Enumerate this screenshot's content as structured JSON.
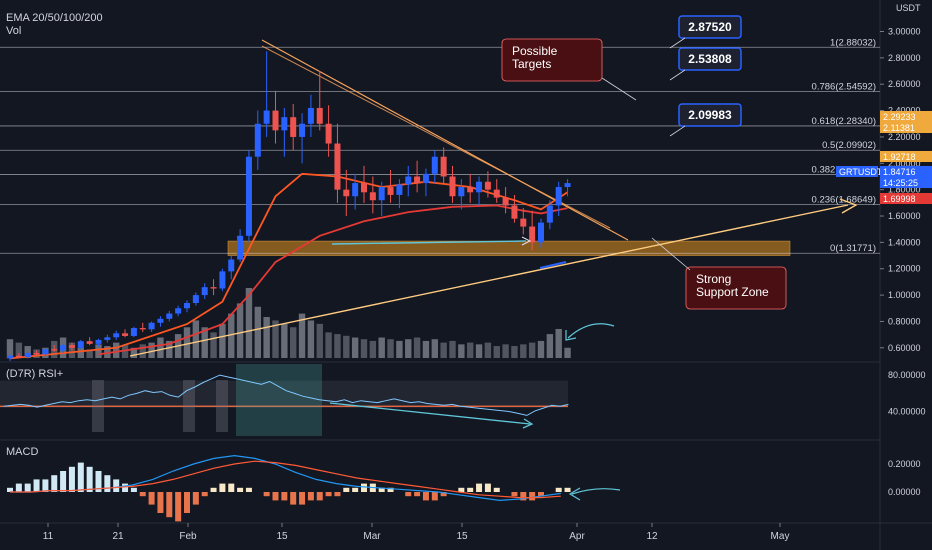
{
  "header": {
    "indicator": "EMA 20/50/100/200",
    "vol_label": "Vol",
    "quote": "USDT"
  },
  "colors": {
    "background": "#131722",
    "up": "#2962ff",
    "down": "#ef5350",
    "ema20": "#ff5722",
    "ema50": "#e53935",
    "trend_down": "#f7a35c",
    "trend_up": "#ffcc80",
    "fib": "#e0e3eb",
    "support_zone": "#b7791f",
    "callout": "#4a0f12",
    "callout_border": "#ff6b6b",
    "target_box": "#1e2230",
    "target_border": "#2962ff",
    "rsi": "#7fc7ff",
    "macd": "#2196f3",
    "signal": "#ff5a36",
    "hist_pos": "#d1e9f5",
    "hist_neg": "#e8744b",
    "hist_pale": "#f7e9c8",
    "annot_arrow": "#5fc6d8"
  },
  "price_axis": {
    "ticks": [
      "3.00000",
      "2.80000",
      "2.60000",
      "2.40000",
      "2.20000",
      "2.00000",
      "1.80000",
      "1.60000",
      "1.40000",
      "1.20000",
      "1.00000",
      "0.80000",
      "0.60000"
    ],
    "tags": [
      {
        "label": "2.29233",
        "value": 2.29233,
        "color": "#f0a93c"
      },
      {
        "label": "2.11381",
        "value": 2.11381,
        "color": "#f0a93c"
      },
      {
        "label": "1.92718",
        "value": 1.92718,
        "color": "#f0a93c"
      },
      {
        "label": "GRTUSDT",
        "value": 1.84716,
        "color": "#2962ff"
      },
      {
        "label": "1.84716",
        "value": 1.84716,
        "color": "#2962ff"
      },
      {
        "label": "14:25:25",
        "value": 1.78,
        "color": "#2962ff"
      },
      {
        "label": "1.69998",
        "value": 1.69998,
        "color": "#e53935"
      }
    ]
  },
  "fib_levels": [
    {
      "label": "1(2.88032)",
      "value": 2.88032
    },
    {
      "label": "0.786(2.54592)",
      "value": 2.54592
    },
    {
      "label": "0.618(2.28340)",
      "value": 2.2834
    },
    {
      "label": "0.5(2.09902)",
      "value": 2.09902
    },
    {
      "label": "0.382(1.91463)",
      "value": 1.91463
    },
    {
      "label": "0.236(1.68649)",
      "value": 1.68649
    },
    {
      "label": "0(1.31771)",
      "value": 1.31771
    }
  ],
  "targets": [
    "2.87520",
    "2.53808",
    "2.09983"
  ],
  "callouts": {
    "targets": "Possible\nTargets",
    "support": "Strong\nSupport Zone"
  },
  "time_axis": [
    "11",
    "21",
    "Feb",
    "15",
    "Mar",
    "15",
    "Apr",
    "12",
    "May"
  ],
  "rsi": {
    "label": "(D7R) RSI+",
    "ticks": [
      "80.00000",
      "40.00000"
    ],
    "values": [
      46,
      47,
      48,
      47,
      45,
      47,
      49,
      51,
      50,
      52,
      53,
      52,
      54,
      56,
      54,
      58,
      60,
      63,
      61,
      62,
      58,
      56,
      63,
      67,
      72,
      76,
      80,
      78,
      76,
      74,
      72,
      70,
      73,
      68,
      63,
      60,
      57,
      55,
      53,
      52,
      51,
      53,
      50,
      52,
      51,
      50,
      52,
      54,
      52,
      50,
      51,
      49,
      48,
      47,
      48,
      46,
      45,
      44,
      43,
      42,
      41,
      40,
      38,
      36,
      41,
      44,
      47,
      46,
      48
    ]
  },
  "macd": {
    "label": "MACD",
    "ticks": [
      "0.20000",
      "0.00000"
    ]
  },
  "chart_data": {
    "type": "candlestick",
    "symbol": "GRTUSDT",
    "ylim": [
      0.5,
      3.0
    ],
    "candles": [
      [
        0.52,
        0.55,
        0.5,
        0.54
      ],
      [
        0.54,
        0.56,
        0.52,
        0.53
      ],
      [
        0.53,
        0.57,
        0.52,
        0.56
      ],
      [
        0.56,
        0.58,
        0.54,
        0.55
      ],
      [
        0.55,
        0.6,
        0.54,
        0.59
      ],
      [
        0.59,
        0.62,
        0.57,
        0.58
      ],
      [
        0.58,
        0.63,
        0.56,
        0.62
      ],
      [
        0.62,
        0.64,
        0.58,
        0.6
      ],
      [
        0.6,
        0.66,
        0.59,
        0.65
      ],
      [
        0.65,
        0.68,
        0.62,
        0.63
      ],
      [
        0.63,
        0.67,
        0.61,
        0.66
      ],
      [
        0.66,
        0.7,
        0.64,
        0.68
      ],
      [
        0.68,
        0.73,
        0.66,
        0.71
      ],
      [
        0.71,
        0.74,
        0.68,
        0.69
      ],
      [
        0.69,
        0.76,
        0.68,
        0.75
      ],
      [
        0.75,
        0.79,
        0.72,
        0.74
      ],
      [
        0.74,
        0.8,
        0.72,
        0.79
      ],
      [
        0.79,
        0.84,
        0.76,
        0.82
      ],
      [
        0.82,
        0.88,
        0.8,
        0.86
      ],
      [
        0.86,
        0.92,
        0.84,
        0.9
      ],
      [
        0.9,
        0.96,
        0.87,
        0.94
      ],
      [
        0.94,
        1.02,
        0.92,
        1.0
      ],
      [
        1.0,
        1.09,
        0.97,
        1.06
      ],
      [
        1.06,
        1.12,
        1.0,
        1.05
      ],
      [
        1.05,
        1.2,
        1.03,
        1.18
      ],
      [
        1.18,
        1.3,
        1.12,
        1.27
      ],
      [
        1.27,
        1.5,
        1.25,
        1.45
      ],
      [
        1.45,
        2.1,
        1.4,
        2.05
      ],
      [
        2.05,
        2.4,
        1.95,
        2.3
      ],
      [
        2.3,
        2.85,
        2.2,
        2.4
      ],
      [
        2.4,
        2.55,
        2.15,
        2.25
      ],
      [
        2.25,
        2.42,
        2.05,
        2.35
      ],
      [
        2.35,
        2.45,
        2.1,
        2.2
      ],
      [
        2.2,
        2.38,
        2.0,
        2.3
      ],
      [
        2.3,
        2.52,
        2.2,
        2.42
      ],
      [
        2.42,
        2.7,
        2.25,
        2.3
      ],
      [
        2.3,
        2.44,
        2.05,
        2.15
      ],
      [
        2.15,
        2.3,
        1.7,
        1.8
      ],
      [
        1.8,
        1.95,
        1.6,
        1.75
      ],
      [
        1.75,
        1.92,
        1.65,
        1.85
      ],
      [
        1.85,
        1.98,
        1.7,
        1.78
      ],
      [
        1.78,
        1.9,
        1.62,
        1.72
      ],
      [
        1.72,
        1.86,
        1.6,
        1.82
      ],
      [
        1.82,
        1.95,
        1.7,
        1.76
      ],
      [
        1.76,
        1.88,
        1.66,
        1.84
      ],
      [
        1.84,
        1.98,
        1.75,
        1.9
      ],
      [
        1.9,
        2.02,
        1.78,
        1.85
      ],
      [
        1.85,
        1.96,
        1.75,
        1.92
      ],
      [
        1.92,
        2.1,
        1.85,
        2.05
      ],
      [
        2.05,
        2.12,
        1.85,
        1.9
      ],
      [
        1.9,
        1.98,
        1.7,
        1.75
      ],
      [
        1.75,
        1.88,
        1.65,
        1.82
      ],
      [
        1.82,
        1.92,
        1.7,
        1.78
      ],
      [
        1.78,
        1.9,
        1.68,
        1.86
      ],
      [
        1.86,
        1.94,
        1.74,
        1.8
      ],
      [
        1.8,
        1.88,
        1.7,
        1.74
      ],
      [
        1.74,
        1.82,
        1.62,
        1.68
      ],
      [
        1.68,
        1.76,
        1.55,
        1.58
      ],
      [
        1.58,
        1.66,
        1.46,
        1.52
      ],
      [
        1.52,
        1.64,
        1.34,
        1.4
      ],
      [
        1.4,
        1.58,
        1.36,
        1.55
      ],
      [
        1.55,
        1.72,
        1.5,
        1.68
      ],
      [
        1.68,
        1.86,
        1.6,
        1.82
      ],
      [
        1.82,
        1.88,
        1.75,
        1.85
      ]
    ],
    "ema20": [
      [
        0,
        0.52
      ],
      [
        12,
        0.6
      ],
      [
        20,
        0.78
      ],
      [
        24,
        0.95
      ],
      [
        27,
        1.35
      ],
      [
        30,
        1.75
      ],
      [
        33,
        1.92
      ],
      [
        37,
        1.9
      ],
      [
        42,
        1.82
      ],
      [
        47,
        1.86
      ],
      [
        52,
        1.82
      ],
      [
        57,
        1.72
      ],
      [
        60,
        1.65
      ],
      [
        63,
        1.78
      ]
    ],
    "ema50": [
      [
        10,
        0.55
      ],
      [
        18,
        0.63
      ],
      [
        24,
        0.78
      ],
      [
        27,
        1.0
      ],
      [
        30,
        1.25
      ],
      [
        35,
        1.45
      ],
      [
        40,
        1.56
      ],
      [
        45,
        1.63
      ],
      [
        50,
        1.67
      ],
      [
        55,
        1.68
      ],
      [
        58,
        1.64
      ],
      [
        60,
        1.62
      ],
      [
        63,
        1.66
      ]
    ],
    "volume": [
      22,
      18,
      14,
      10,
      12,
      20,
      24,
      18,
      12,
      10,
      16,
      14,
      18,
      15,
      12,
      16,
      18,
      24,
      20,
      28,
      36,
      44,
      36,
      30,
      40,
      52,
      64,
      82,
      60,
      48,
      44,
      40,
      36,
      52,
      44,
      40,
      30,
      28,
      26,
      24,
      22,
      20,
      24,
      22,
      20,
      22,
      24,
      20,
      22,
      18,
      20,
      16,
      18,
      16,
      18,
      14,
      16,
      14,
      16,
      18,
      20,
      28,
      34,
      12
    ],
    "macd_line": [
      0,
      0.0,
      0.01,
      0.01,
      0.02,
      0.03,
      0.05,
      0.09,
      0.15,
      0.2,
      0.24,
      0.26,
      0.24,
      0.2,
      0.14,
      0.09,
      0.06,
      0.04,
      0.03,
      0.02,
      0.01,
      0.0,
      -0.02,
      -0.04,
      -0.06,
      -0.05,
      -0.03,
      -0.01
    ],
    "signal_line": [
      0,
      0.0,
      0.01,
      0.01,
      0.02,
      0.03,
      0.04,
      0.06,
      0.09,
      0.13,
      0.17,
      0.2,
      0.22,
      0.21,
      0.19,
      0.16,
      0.13,
      0.1,
      0.08,
      0.06,
      0.04,
      0.02,
      0.0,
      -0.02,
      -0.03,
      -0.04,
      -0.04,
      -0.03
    ],
    "macd_hist": [
      0.01,
      0.02,
      0.02,
      0.03,
      0.03,
      0.04,
      0.05,
      0.06,
      0.07,
      0.06,
      0.05,
      0.04,
      0.03,
      0.02,
      0.01,
      -0.01,
      -0.03,
      -0.05,
      -0.06,
      -0.07,
      -0.05,
      -0.03,
      -0.01,
      0.01,
      0.02,
      0.02,
      0.01,
      0.01,
      0.0,
      -0.01,
      -0.02,
      -0.02,
      -0.03,
      -0.03,
      -0.02,
      -0.02,
      -0.01,
      -0.01,
      0.01,
      0.01,
      0.02,
      0.02,
      0.01,
      0.01,
      0.0,
      -0.01,
      -0.01,
      -0.02,
      -0.02,
      -0.01,
      0.0,
      0.01,
      0.01,
      0.02,
      0.02,
      0.01,
      0.0,
      -0.01,
      -0.02,
      -0.02,
      -0.01,
      0.0,
      0.01,
      0.01
    ]
  }
}
